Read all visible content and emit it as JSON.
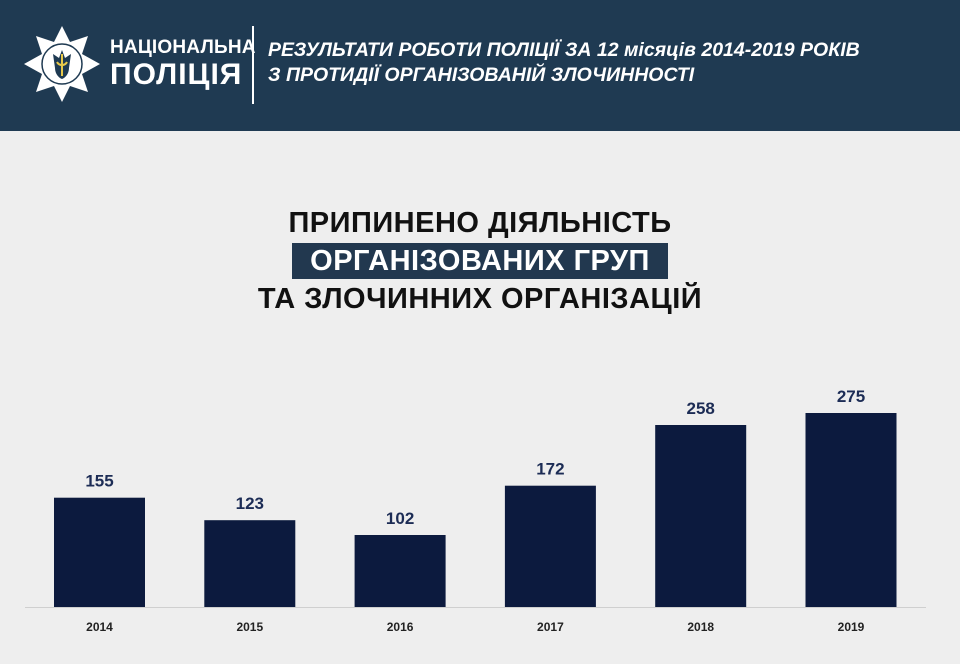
{
  "header": {
    "logo_line1": "НАЦІОНАЛЬНА",
    "logo_line2": "ПОЛІЦІЯ",
    "title_line1": "РЕЗУЛЬТАТИ РОБОТИ ПОЛІЦІЇ ЗА 12 місяців 2014-2019 РОКІВ",
    "title_line2": "З ПРОТИДІЇ ОРГАНІЗОВАНІЙ ЗЛОЧИННОСТІ"
  },
  "heading": {
    "line1": "ПРИПИНЕНО ДІЯЛЬНІСТЬ",
    "line2": "ОРГАНІЗОВАНИХ ГРУП",
    "line3": "ТА ЗЛОЧИННИХ ОРГАНІЗАЦІЙ"
  },
  "colors": {
    "header_bg": "#1f3a52",
    "bar": "#0c1a3e",
    "background": "#eeeeee"
  },
  "chart_data": {
    "type": "bar",
    "categories": [
      "2014",
      "2015",
      "2016",
      "2017",
      "2018",
      "2019"
    ],
    "values": [
      155,
      123,
      102,
      172,
      258,
      275
    ],
    "title": "",
    "xlabel": "",
    "ylabel": "",
    "ylim": [
      0,
      275
    ],
    "grid": false,
    "data_labels": true
  }
}
